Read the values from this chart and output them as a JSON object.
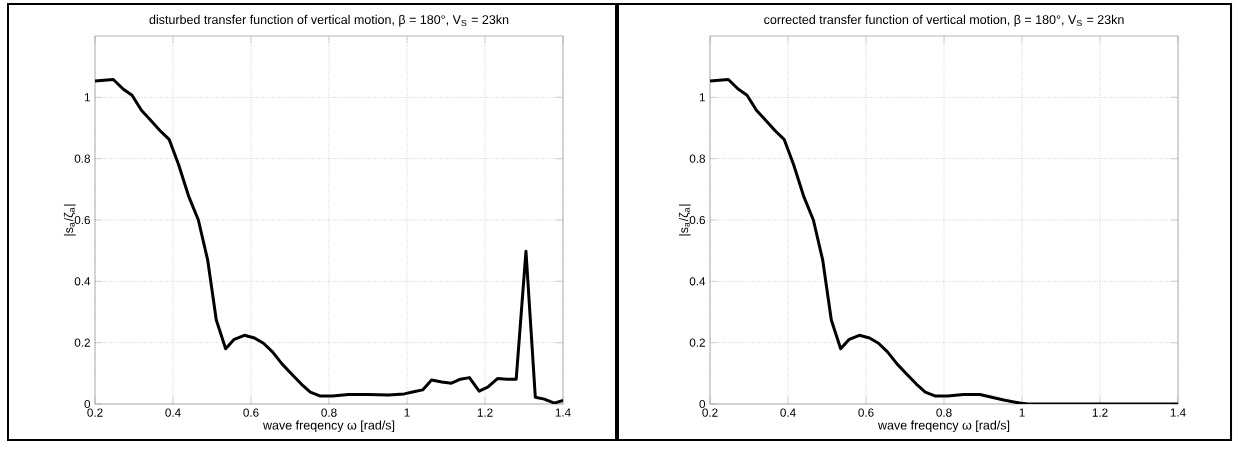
{
  "chart_data": [
    {
      "type": "line",
      "title": "disturbed transfer function of vertical motion, β = 180°,  V$_{S}$ = 23kn",
      "xlabel": "wave freqency ω [rad/s]",
      "ylabel": "|s$_{a}$/ζ$_{a}$|",
      "x": [
        0.2,
        0.247,
        0.272,
        0.295,
        0.319,
        0.338,
        0.367,
        0.39,
        0.414,
        0.44,
        0.465,
        0.489,
        0.511,
        0.535,
        0.557,
        0.583,
        0.609,
        0.632,
        0.655,
        0.68,
        0.704,
        0.729,
        0.752,
        0.778,
        0.809,
        0.85,
        0.9,
        0.952,
        0.993,
        1.014,
        1.04,
        1.063,
        1.089,
        1.114,
        1.137,
        1.16,
        1.185,
        1.207,
        1.232,
        1.256,
        1.28,
        1.305,
        1.329,
        1.352,
        1.378,
        1.4
      ],
      "values": [
        1.053,
        1.058,
        1.027,
        1.007,
        0.958,
        0.932,
        0.891,
        0.863,
        0.782,
        0.678,
        0.6,
        0.469,
        0.274,
        0.18,
        0.211,
        0.224,
        0.215,
        0.198,
        0.17,
        0.13,
        0.098,
        0.065,
        0.039,
        0.026,
        0.026,
        0.031,
        0.031,
        0.029,
        0.033,
        0.039,
        0.046,
        0.078,
        0.072,
        0.068,
        0.081,
        0.086,
        0.042,
        0.055,
        0.083,
        0.081,
        0.081,
        0.498,
        0.022,
        0.016,
        0.003,
        0.012
      ],
      "color": "#000000",
      "xlim": [
        0.2,
        1.4
      ],
      "ylim": [
        0,
        1.2
      ],
      "xticks": [
        0.2,
        0.4,
        0.6,
        0.8,
        1,
        1.2,
        1.4
      ],
      "yticks": [
        0,
        0.2,
        0.4,
        0.6,
        0.8,
        1
      ],
      "grid": true
    },
    {
      "type": "line",
      "title": "corrected transfer function of vertical motion, β = 180°,  V$_{S}$ = 23kn",
      "xlabel": "wave freqency ω [rad/s]",
      "ylabel": "|s$_{a}$/ζ$_{a}$|",
      "x": [
        0.2,
        0.247,
        0.272,
        0.295,
        0.319,
        0.338,
        0.367,
        0.39,
        0.414,
        0.44,
        0.465,
        0.489,
        0.511,
        0.535,
        0.557,
        0.583,
        0.609,
        0.632,
        0.655,
        0.68,
        0.704,
        0.729,
        0.752,
        0.778,
        0.809,
        0.85,
        0.892,
        0.953,
        0.994,
        1.015,
        1.2,
        1.4
      ],
      "values": [
        1.053,
        1.058,
        1.027,
        1.007,
        0.958,
        0.932,
        0.891,
        0.863,
        0.782,
        0.678,
        0.6,
        0.469,
        0.274,
        0.18,
        0.211,
        0.224,
        0.215,
        0.198,
        0.17,
        0.13,
        0.098,
        0.065,
        0.039,
        0.026,
        0.026,
        0.031,
        0.031,
        0.013,
        0.003,
        0,
        0,
        0
      ],
      "color": "#000000",
      "xlim": [
        0.2,
        1.4
      ],
      "ylim": [
        0,
        1.2
      ],
      "xticks": [
        0.2,
        0.4,
        0.6,
        0.8,
        1,
        1.2,
        1.4
      ],
      "yticks": [
        0,
        0.2,
        0.4,
        0.6,
        0.8,
        1
      ],
      "grid": true
    }
  ]
}
